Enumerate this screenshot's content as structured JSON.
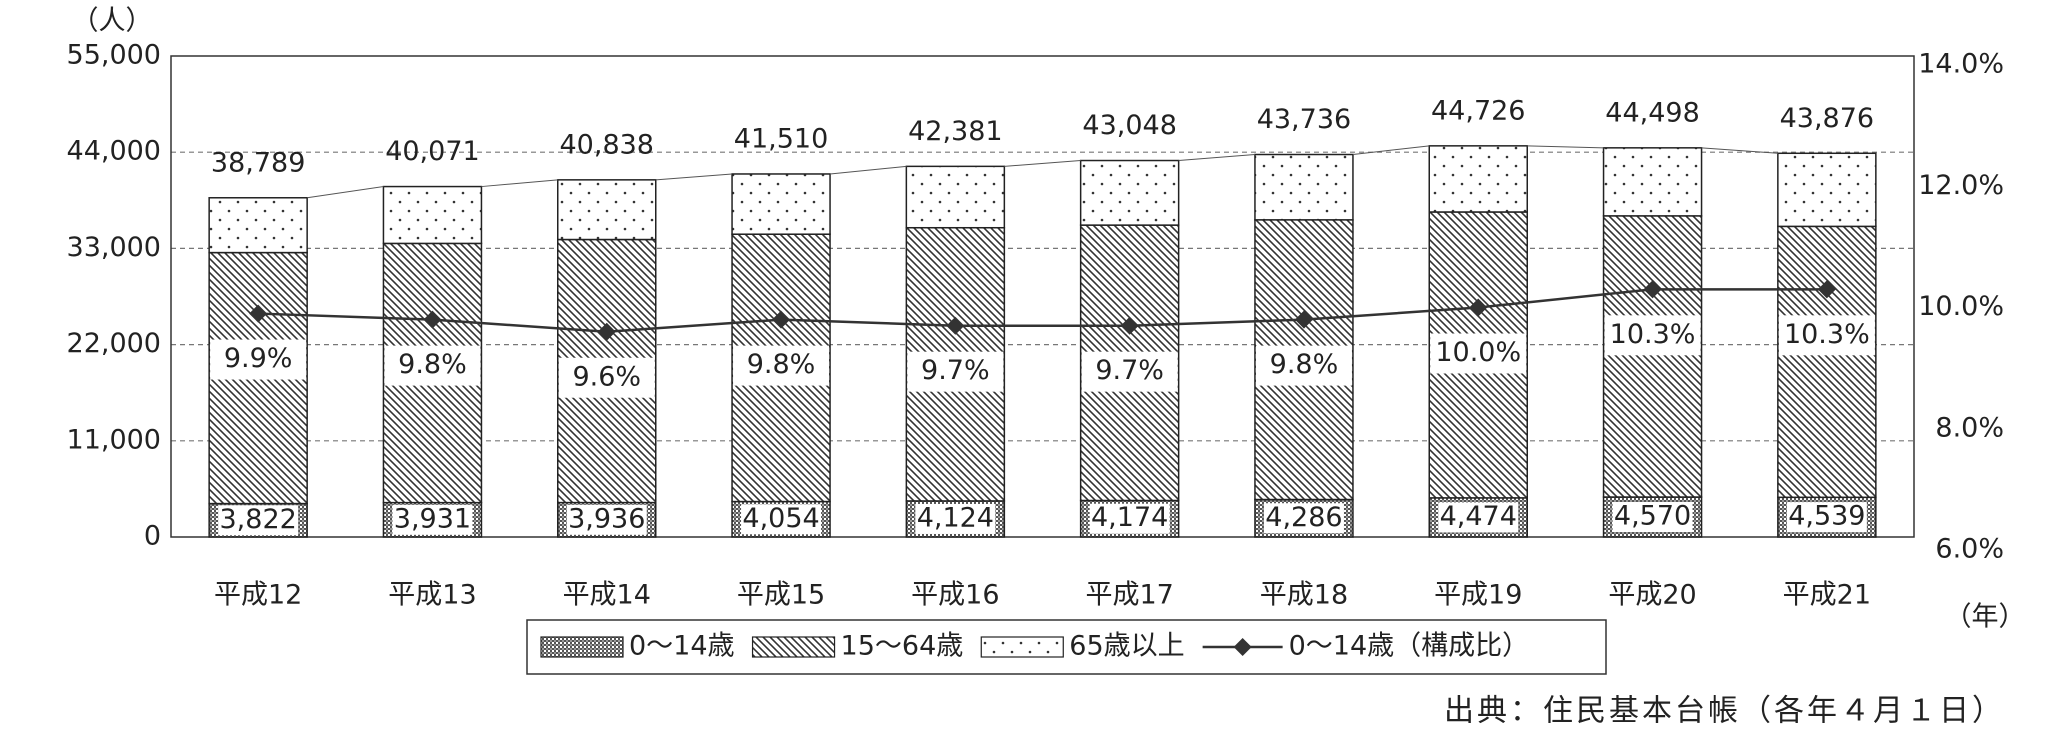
{
  "chart_data": {
    "type": "stacked-bar-line",
    "y_unit_label": "（人）",
    "x_unit_label": "（年）",
    "source": "出典：住民基本台帳（各年４月１日）",
    "categories": [
      "平成12",
      "平成13",
      "平成14",
      "平成15",
      "平成16",
      "平成17",
      "平成18",
      "平成19",
      "平成20",
      "平成21"
    ],
    "series": [
      {
        "name": "0～14歳",
        "color": "#555555",
        "pattern": "checker",
        "values": [
          3822,
          3931,
          3936,
          4054,
          4124,
          4174,
          4286,
          4474,
          4570,
          4539
        ],
        "value_labels": [
          "3,822",
          "3,931",
          "3,936",
          "4,054",
          "4,124",
          "4,174",
          "4,286",
          "4,474",
          "4,570",
          "4,539"
        ]
      },
      {
        "name": "15～64歳",
        "color": "#333333",
        "pattern": "hatch",
        "values": [
          28700,
          29640,
          30080,
          30570,
          31240,
          31490,
          31980,
          32690,
          32150,
          30980
        ]
      },
      {
        "name": "65歳以上",
        "color": "#333333",
        "pattern": "dots",
        "values": [
          6267,
          6500,
          6822,
          6886,
          7017,
          7384,
          7470,
          7562,
          7778,
          8357
        ]
      },
      {
        "name": "0～14歳（構成比）",
        "color": "#333333",
        "type": "line",
        "axis": "y2",
        "marker": "diamond",
        "values": [
          9.9,
          9.8,
          9.6,
          9.8,
          9.7,
          9.7,
          9.8,
          10.0,
          10.3,
          10.3
        ],
        "value_labels": [
          "9.9%",
          "9.8%",
          "9.6%",
          "9.8%",
          "9.7%",
          "9.7%",
          "9.8%",
          "10.0%",
          "10.3%",
          "10.3%"
        ]
      }
    ],
    "totals": {
      "values": [
        38789,
        40071,
        40838,
        41510,
        42381,
        43048,
        43736,
        44726,
        44498,
        43876
      ],
      "value_labels": [
        "38,789",
        "40,071",
        "40,838",
        "41,510",
        "42,381",
        "43,048",
        "43,736",
        "44,726",
        "44,498",
        "43,876"
      ]
    },
    "ylim": [
      0,
      55000
    ],
    "yticks": [
      0,
      {
        "value": 11000,
        "label": "11,000"
      },
      {
        "value": 22000,
        "label": "22,000"
      },
      {
        "value": 33000,
        "label": "33,000"
      },
      {
        "value": 44000,
        "label": "44,000"
      },
      {
        "value": 55000,
        "label": "55,000"
      }
    ],
    "y2lim": [
      6,
      14
    ],
    "y2ticks": [
      {
        "value": 6,
        "label": "6.0%"
      },
      {
        "value": 8,
        "label": "8.0%"
      },
      {
        "value": 10,
        "label": "10.0%"
      },
      {
        "value": 12,
        "label": "12.0%"
      },
      {
        "value": 14,
        "label": "14.0%"
      }
    ],
    "grid": true,
    "legend": "bottom"
  }
}
